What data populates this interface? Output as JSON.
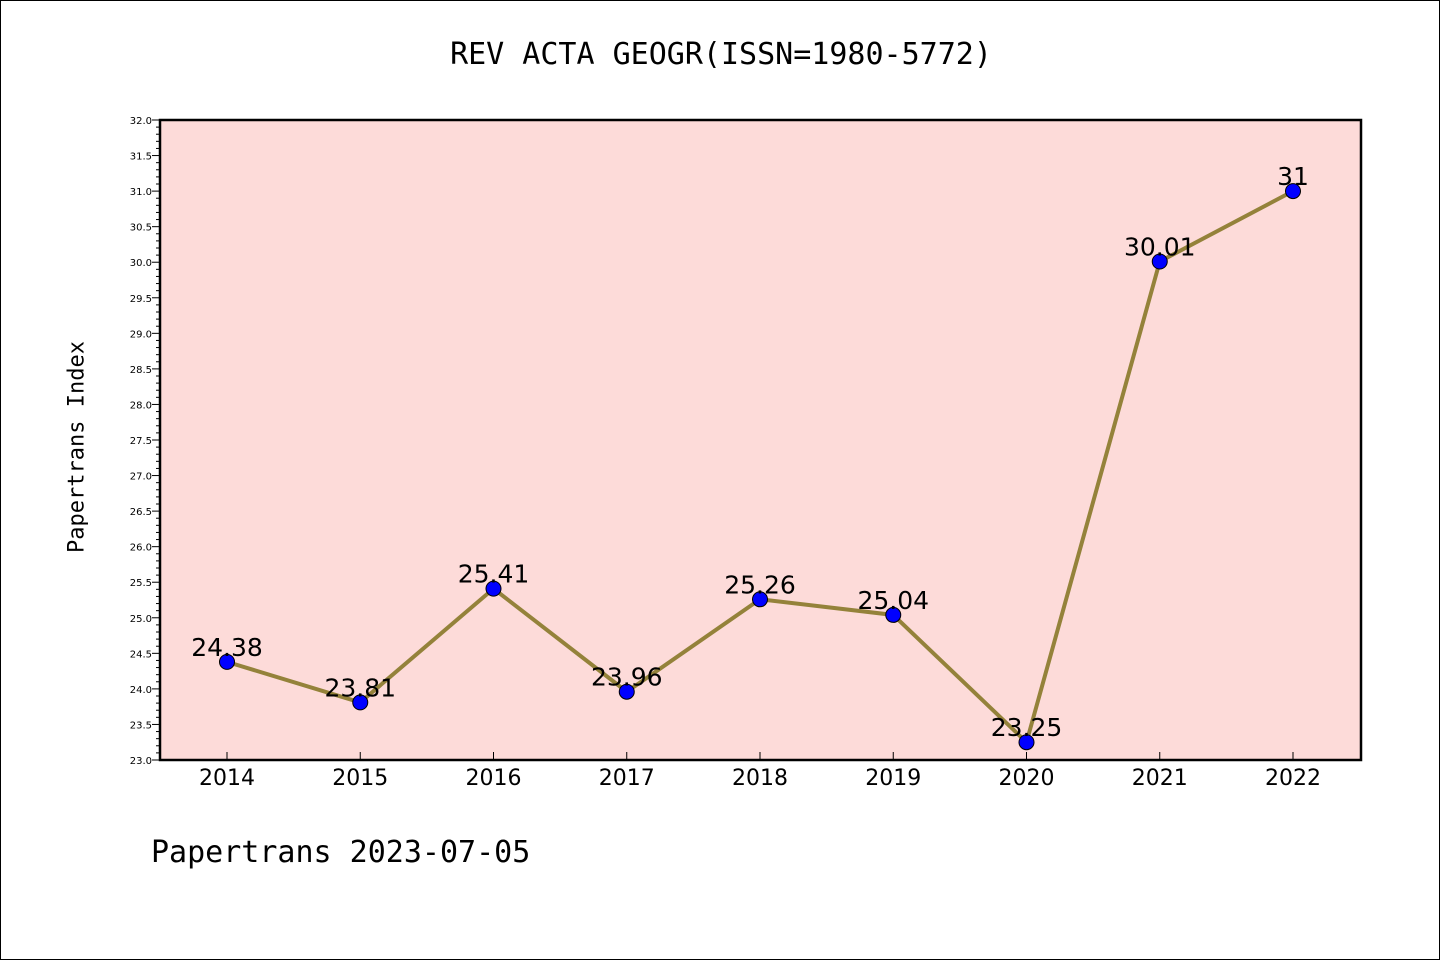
{
  "chart_data": {
    "type": "line",
    "title": "REV ACTA GEOGR(ISSN=1980-5772)",
    "ylabel": "Papertrans Index",
    "xlabel": "",
    "x": [
      "2014",
      "2015",
      "2016",
      "2017",
      "2018",
      "2019",
      "2020",
      "2021",
      "2022"
    ],
    "values": [
      24.38,
      23.81,
      25.41,
      23.96,
      25.26,
      25.04,
      23.25,
      30.01,
      31
    ],
    "data_labels": [
      "24.38",
      "23.81",
      "25.41",
      "23.96",
      "25.26",
      "25.04",
      "23.25",
      "30.01",
      "31"
    ],
    "ylim": [
      23.0,
      32.0
    ],
    "yticks": [
      "23.0",
      "23.5",
      "24.0",
      "24.5",
      "25.0",
      "25.5",
      "26.0",
      "26.5",
      "27.0",
      "27.5",
      "28.0",
      "28.5",
      "29.0",
      "29.5",
      "30.0",
      "30.5",
      "31.0",
      "31.5",
      "32.0"
    ],
    "grid": false,
    "legend": "none",
    "colors": {
      "plot_background": "#fddbd9",
      "line": "#94823a",
      "marker": "#0000ff"
    }
  },
  "footer": "Papertrans 2023-07-05"
}
